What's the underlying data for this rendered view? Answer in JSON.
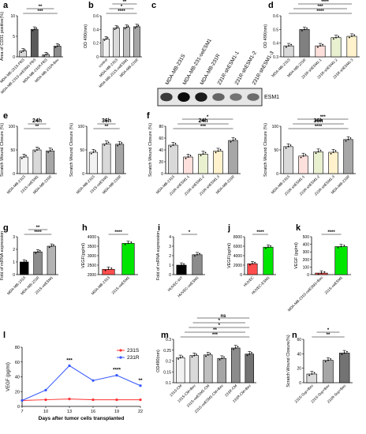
{
  "figure": {
    "panels": [
      "a",
      "b",
      "c",
      "d",
      "e",
      "f",
      "g",
      "h",
      "i",
      "j",
      "k",
      "l",
      "m",
      "n"
    ],
    "significance": {
      "a": [
        "***",
        "**"
      ],
      "b": [
        "****",
        "*",
        "**"
      ],
      "d": [
        "****",
        "***",
        "****",
        "*"
      ],
      "e24": [
        "**",
        "*"
      ],
      "e36": [
        "**",
        "*"
      ],
      "f24": [
        "***",
        "**",
        "*"
      ],
      "f36": [
        "****",
        "****",
        "***"
      ],
      "g": [
        "****",
        "**"
      ],
      "h": [
        "****"
      ],
      "i": [
        "*"
      ],
      "j": [
        "****"
      ],
      "k": [
        "****"
      ],
      "l": [
        "***",
        "****",
        "**"
      ],
      "m": [
        "***",
        "**",
        "*",
        "*",
        "ns"
      ],
      "n": [
        "**",
        "*"
      ]
    }
  },
  "chart_data": [
    {
      "panel": "a",
      "type": "bar",
      "ylabel": "Area of CD31 positive(%)",
      "ylim": [
        0,
        10
      ],
      "ticks": [
        0,
        5,
        10
      ],
      "categories": [
        "MDA-MB-231S-PBS",
        "MDA-MB-231S-oeESM1-PBS",
        "MDA-MB-231R-PBS",
        "MDA-MB-231R-Bev"
      ],
      "values": [
        1.4,
        6.7,
        0.5,
        2.6
      ],
      "colors": [
        "#d9d9d9",
        "#5a5a5a",
        "#c8c8c8",
        "#8c8c8c"
      ]
    },
    {
      "panel": "b",
      "type": "bar",
      "ylabel": "OD 490(nm)",
      "ylim": [
        0,
        0.6
      ],
      "ticks": [
        0,
        0.2,
        0.4,
        0.6
      ],
      "categories": [
        "control",
        "MDA-MB-231S",
        "MDA-MB-231S-oeESM1",
        "MDA-MB-231R"
      ],
      "values": [
        0.26,
        0.42,
        0.43,
        0.44
      ],
      "colors": [
        "#f2f2f2",
        "#d9d9d9",
        "#bfbfbf",
        "#a6a6a6"
      ]
    },
    {
      "panel": "c",
      "type": "blot",
      "lanes": [
        "MDA-MB-231S",
        "MDA-MB-231-oeESM1",
        "MDA-MB-231R",
        "231R-shESM1-1",
        "231R-shESM1-2",
        "231R-shESM1-3"
      ],
      "band_label": "ESM1",
      "intensity": [
        0.7,
        1.0,
        0.9,
        0.45,
        0.35,
        0.4
      ]
    },
    {
      "panel": "d",
      "type": "bar",
      "ylabel": "OD 490(nm)",
      "ylim": [
        0.3,
        0.6
      ],
      "ticks": [
        0.3,
        0.4,
        0.5,
        0.6
      ],
      "categories": [
        "MDA-MB-231S",
        "MDA-MB-231R",
        "231R-shESM1-1",
        "231R-shESM1-2",
        "231R-shESM1-3"
      ],
      "values": [
        0.38,
        0.5,
        0.38,
        0.44,
        0.45
      ],
      "colors": [
        "#d9d9d9",
        "#808080",
        "#fde0dc",
        "#e8f0d0",
        "#fff2cc"
      ]
    },
    {
      "panel": "e24",
      "type": "bar",
      "title": "24h",
      "ylabel": "Scratch Wound Closure (%)",
      "ylim": [
        0,
        100
      ],
      "ticks": [
        0,
        50,
        100
      ],
      "categories": [
        "MDA-MB-231S",
        "231S-oeESM1",
        "MDA-MB-231R"
      ],
      "values": [
        35,
        50,
        48
      ],
      "colors": [
        "#f2f2f2",
        "#d9d9d9",
        "#a6a6a6"
      ]
    },
    {
      "panel": "e36",
      "type": "bar",
      "title": "36h",
      "ylabel": "Scratch Wound Closure (%)",
      "ylim": [
        0,
        100
      ],
      "ticks": [
        0,
        50,
        100
      ],
      "categories": [
        "MDA-MB-231S",
        "231S-oeESM1",
        "MDA-MB-231R"
      ],
      "values": [
        45,
        63,
        62
      ],
      "colors": [
        "#f2f2f2",
        "#d9d9d9",
        "#a6a6a6"
      ]
    },
    {
      "panel": "f24",
      "type": "bar",
      "title": "24h",
      "ylabel": "Scratch Wound Closure (%)",
      "ylim": [
        0,
        80
      ],
      "ticks": [
        0,
        20,
        40,
        60,
        80
      ],
      "categories": [
        "MDA-MB-231S",
        "231R-shESM1-1",
        "231R-shESM1-2",
        "231R-shESM1-3",
        "MDA-MB-231R"
      ],
      "values": [
        48,
        28,
        33,
        38,
        56
      ],
      "colors": [
        "#d9d9d9",
        "#fde0dc",
        "#e8f0d0",
        "#fff2cc",
        "#a6a6a6"
      ]
    },
    {
      "panel": "f36",
      "type": "bar",
      "title": "36h",
      "ylabel": "Scratch Wound Closure (%)",
      "ylim": [
        0,
        100
      ],
      "ticks": [
        0,
        50,
        100
      ],
      "categories": [
        "MDA-MB-231S",
        "231R-shESM1-1",
        "231R-shESM1-2",
        "231R-shESM1-3",
        "MDA-MB-231R"
      ],
      "values": [
        57,
        37,
        46,
        45,
        72
      ],
      "colors": [
        "#d9d9d9",
        "#fde0dc",
        "#e8f0d0",
        "#fff2cc",
        "#a6a6a6"
      ]
    },
    {
      "panel": "g",
      "type": "bar",
      "ylabel": "Fold of mRNA expression",
      "ylim": [
        0,
        3
      ],
      "ticks": [
        0,
        1,
        2,
        3
      ],
      "categories": [
        "MDA-MB-231S",
        "MDA-MB-231R",
        "231S-oeESM1"
      ],
      "values": [
        1.0,
        1.8,
        2.25
      ],
      "colors": [
        "#000000",
        "#8c8c8c",
        "#b3b3b3"
      ]
    },
    {
      "panel": "h",
      "type": "bar",
      "ylabel": "VEGF(pg/ml)",
      "ylim": [
        2000,
        4000
      ],
      "ticks": [
        2000,
        2500,
        3000,
        3500,
        4000
      ],
      "categories": [
        "MDA-MB-231S",
        "231S-oeESM1"
      ],
      "values": [
        2280,
        3650
      ],
      "colors": [
        "#ff4d4d",
        "#00e600"
      ]
    },
    {
      "panel": "i",
      "type": "bar",
      "ylabel": "Fold of mRNA expression",
      "ylim": [
        0,
        4
      ],
      "ticks": [
        0,
        1,
        2,
        3,
        4
      ],
      "categories": [
        "HUVEC-WT",
        "HUVEC-oeESM1"
      ],
      "values": [
        1.0,
        2.1
      ],
      "colors": [
        "#000000",
        "#8c8c8c"
      ]
    },
    {
      "panel": "j",
      "type": "bar",
      "ylabel": "VEGF(pg/ml)",
      "ylim": [
        0,
        8000
      ],
      "ticks": [
        0,
        2000,
        4000,
        6000,
        8000
      ],
      "categories": [
        "HUVEC",
        "HUVEC-ESM1"
      ],
      "values": [
        2300,
        5800
      ],
      "colors": [
        "#ff4d4d",
        "#00e600"
      ]
    },
    {
      "panel": "k",
      "type": "bar",
      "ylabel": "VEGF (pg/ml)",
      "ylim": [
        0,
        500
      ],
      "ticks": [
        0,
        100,
        200,
        300,
        400,
        500
      ],
      "categories": [
        "MDA-MB-231S-oeESM1+Bev",
        "231S-oeESM1"
      ],
      "values": [
        20,
        370
      ],
      "colors": [
        "#ff4d4d",
        "#00e600"
      ]
    },
    {
      "panel": "l",
      "type": "line",
      "ylabel": "VEGF (pg/ml)",
      "xlabel": "Days after tumor cells transplanted",
      "ylim": [
        0,
        80
      ],
      "ticks": [
        0,
        20,
        40,
        60,
        80
      ],
      "x": [
        7,
        10,
        13,
        16,
        19,
        22
      ],
      "series": [
        {
          "name": "231S",
          "color": "#ff3333",
          "values": [
            8,
            9,
            10,
            9,
            9,
            9
          ]
        },
        {
          "name": "231R",
          "color": "#3355ff",
          "values": [
            8,
            22,
            55,
            35,
            42,
            28
          ]
        }
      ],
      "legend": "top-right"
    },
    {
      "panel": "m",
      "type": "bar",
      "ylabel": "OD490(nm)",
      "ylim": [
        0.1,
        0.3
      ],
      "ticks": [
        0.1,
        0.15,
        0.2,
        0.25,
        0.3
      ],
      "categories": [
        "231S-CM",
        "231S-CM+Bev",
        "231S-oeESM1-CM",
        "231S-oeESM1-CM+Bev",
        "231R-CM",
        "231R-CM+Bev"
      ],
      "values": [
        0.215,
        0.225,
        0.228,
        0.212,
        0.26,
        0.232
      ],
      "colors": [
        "#f2f2f2",
        "#d9d9d9",
        "#bfbfbf",
        "#a6a6a6",
        "#8c8c8c",
        "#737373"
      ]
    },
    {
      "panel": "n",
      "type": "bar",
      "ylabel": "Scratch Wound Closure(%)",
      "ylim": [
        0,
        60
      ],
      "ticks": [
        0,
        20,
        40,
        60
      ],
      "categories": [
        "231S-Sup+Bev",
        "231S-Sup+Bev",
        "231R-Sup+Bev"
      ],
      "values": [
        12,
        31,
        41
      ],
      "colors": [
        "#d9d9d9",
        "#a6a6a6",
        "#737373"
      ]
    }
  ]
}
